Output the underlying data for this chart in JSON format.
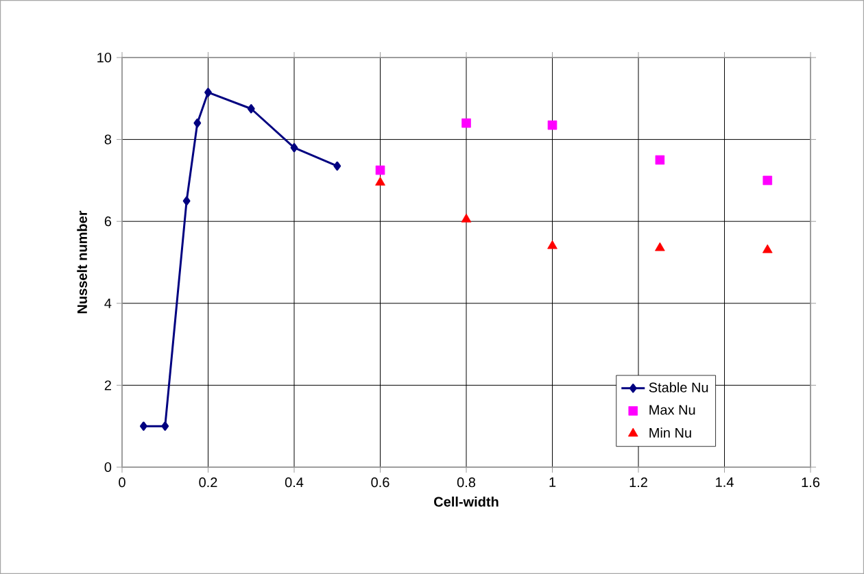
{
  "chart_data": {
    "type": "line",
    "xlabel": "Cell-width",
    "ylabel": "Nusselt number",
    "xlim": [
      0,
      1.6
    ],
    "xticks": [
      0,
      0.2,
      0.4,
      0.6,
      0.8,
      1,
      1.2,
      1.4,
      1.6
    ],
    "ylim": [
      0,
      10
    ],
    "yticks": [
      0,
      2,
      4,
      6,
      8,
      10
    ],
    "grid": true,
    "legend": "bottom right",
    "series": [
      {
        "name": "Stable Nu",
        "type": "line",
        "marker": "diamond",
        "color": "#000080",
        "x": [
          0.05,
          0.1,
          0.15,
          0.175,
          0.2,
          0.3,
          0.4,
          0.5
        ],
        "values": [
          1.0,
          1.0,
          6.5,
          8.4,
          9.15,
          8.75,
          7.8,
          7.35
        ]
      },
      {
        "name": "Max Nu",
        "type": "scatter",
        "marker": "square",
        "color": "#ff00ff",
        "x": [
          0.6,
          0.8,
          1.0,
          1.25,
          1.5
        ],
        "values": [
          7.25,
          8.4,
          8.35,
          7.5,
          7.0
        ]
      },
      {
        "name": "Min Nu",
        "type": "scatter",
        "marker": "triangle",
        "color": "#ff0000",
        "x": [
          0.6,
          0.8,
          1.0,
          1.25,
          1.5
        ],
        "values": [
          6.95,
          6.05,
          5.4,
          5.35,
          5.3
        ]
      }
    ]
  }
}
